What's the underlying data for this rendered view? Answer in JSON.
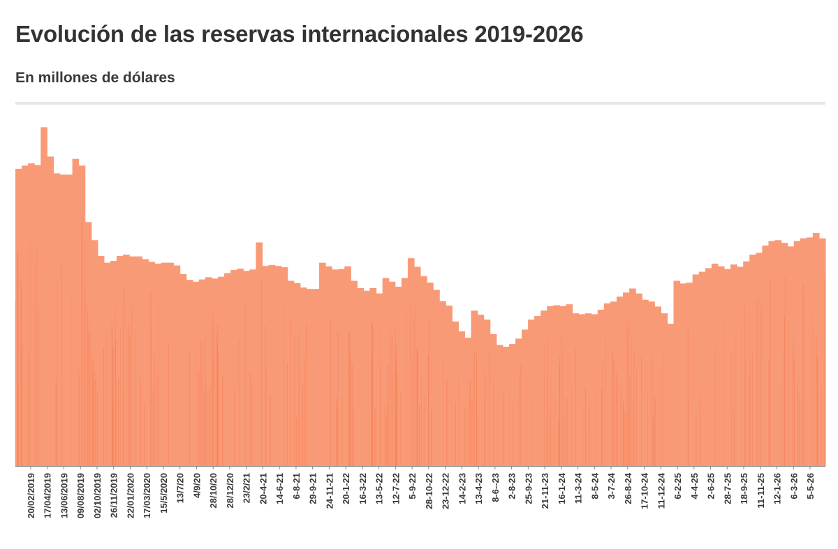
{
  "header": {
    "title": "Evolución de las reservas internacionales 2019-2026",
    "subtitle": "En millones de dólares"
  },
  "colors": {
    "bar": "#f99a77",
    "bar_dark": "#f57a4e",
    "axis": "#888888",
    "rule": "#e6e6e6",
    "text": "#333333"
  },
  "chart_data": {
    "type": "bar",
    "title": "Evolución de las reservas internacionales 2019-2026",
    "subtitle": "En millones de dólares",
    "xlabel": "",
    "ylabel": "",
    "grid": false,
    "legend": "none",
    "ylim": [
      0,
      80000
    ],
    "x_ticks": [
      "20/02/2019",
      "17/04/2019",
      "13/06/2019",
      "09/08/2019",
      "02/10/2019",
      "26/11/2019",
      "22/01/2020",
      "17/03/2020",
      "15/5/2020",
      "13/7/20",
      "4/9/20",
      "28/10/20",
      "28/12/20",
      "23/2/21",
      "20-4-21",
      "14-6-21",
      "6-8-21",
      "29-9-21",
      "24-11-21",
      "20-1-22",
      "16-3-22",
      "13-5-22",
      "12-7-22",
      "5-9-22",
      "28-10-22",
      "23-12-22",
      "14-2-23",
      "13-4-23",
      "8-6--23",
      "2-8-23",
      "25-9-23",
      "21-11-23",
      "16-1-24",
      "11-3-24",
      "8-5-24",
      "3-7-24",
      "26-8-24",
      "17-10-24",
      "11-12-24",
      "6-2-25",
      "4-4-25",
      "2-6-25",
      "28-7-25",
      "18-9-25",
      "11-11-25",
      "12-1-26",
      "6-3-26",
      "5-5-26"
    ],
    "series": [
      {
        "values": [
          65800,
          66500,
          67000,
          66600,
          75000,
          68500,
          64800,
          64500,
          64500,
          68000,
          66500,
          54000,
          50000,
          46500,
          45000,
          45400,
          46500,
          46800,
          46400,
          46400,
          45800,
          45200,
          44800,
          45000,
          45000,
          44400,
          42500,
          41200,
          40800,
          41300,
          41800,
          41500,
          41900,
          42700,
          43400,
          43700,
          43200,
          43500,
          49500,
          44300,
          44500,
          44300,
          44000,
          41000,
          40500,
          39500,
          39200,
          39200,
          45000,
          44200,
          43500,
          43600,
          44200,
          41000,
          39400,
          38800,
          39400,
          38200,
          41600,
          40800,
          39700,
          41600,
          46000,
          44100,
          42000,
          40600,
          39000,
          36500,
          35500,
          32000,
          29800,
          28400,
          34400,
          33500,
          32400,
          29200,
          26800,
          26400,
          27000,
          28200,
          30200,
          32400,
          33200,
          34400,
          35400,
          35600,
          35400,
          35800,
          33800,
          33600,
          33800,
          33600,
          34600,
          36000,
          36400,
          37500,
          38400,
          39300,
          38200,
          36800,
          36400,
          35300,
          33800,
          31500,
          41000,
          40400,
          40600,
          42400,
          43000,
          43800,
          44800,
          44200,
          43600,
          44600,
          44100,
          45300,
          46800,
          47200,
          48800,
          49800,
          50000,
          49400,
          48600,
          49800,
          50400,
          50600,
          51600,
          50400
        ]
      }
    ]
  }
}
